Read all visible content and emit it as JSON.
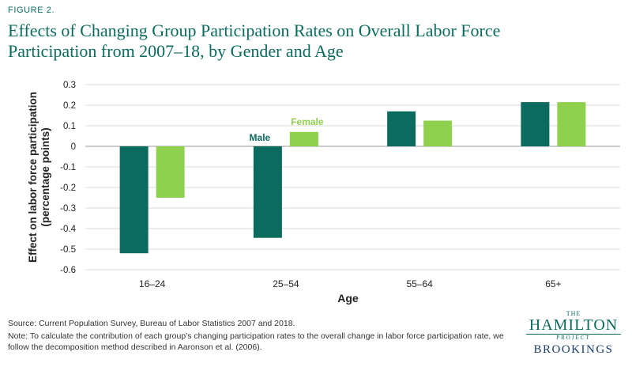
{
  "figure_label": "FIGURE 2.",
  "title": "Effects of Changing Group Participation Rates on Overall Labor Force Participation from 2007–18, by Gender and Age",
  "source": "Source: Current Population Survey, Bureau of Labor Statistics 2007 and 2018.",
  "note": "Note: To calculate the contribution of each group’s changing participation rates to the overall change in labor force participation rate, we follow the decomposition method described in Aaronson et al. (2006).",
  "logo": {
    "the": "THE",
    "hamilton": "HAMILTON",
    "project": "PROJECT",
    "brookings": "BROOKINGS"
  },
  "colors": {
    "male": "#0b6b5e",
    "female": "#8fd14f",
    "accent": "#0b6b5e"
  },
  "chart_data": {
    "type": "bar",
    "categories": [
      "16–24",
      "25–54",
      "55–64",
      "65+"
    ],
    "series": [
      {
        "name": "Male",
        "values": [
          -0.52,
          -0.445,
          0.17,
          0.215
        ]
      },
      {
        "name": "Female",
        "values": [
          -0.25,
          0.07,
          0.125,
          0.215
        ]
      }
    ],
    "xlabel": "Age",
    "ylabel": "Effect on labor force participation (percentage points)",
    "ylabel_lines": [
      "Effect on labor force participation",
      "(percentage points)"
    ],
    "ylim": [
      -0.6,
      0.3
    ],
    "yticks": [
      0.3,
      0.2,
      0.1,
      0,
      -0.1,
      -0.2,
      -0.3,
      -0.4,
      -0.5,
      -0.6
    ],
    "ytick_labels": [
      "0.3",
      "0.2",
      "0.1",
      "0",
      "-0.1",
      "-0.2",
      "-0.3",
      "-0.4",
      "-0.5",
      "-0.6"
    ],
    "grid": true,
    "legend": "inline labels above 25–54 bars"
  }
}
